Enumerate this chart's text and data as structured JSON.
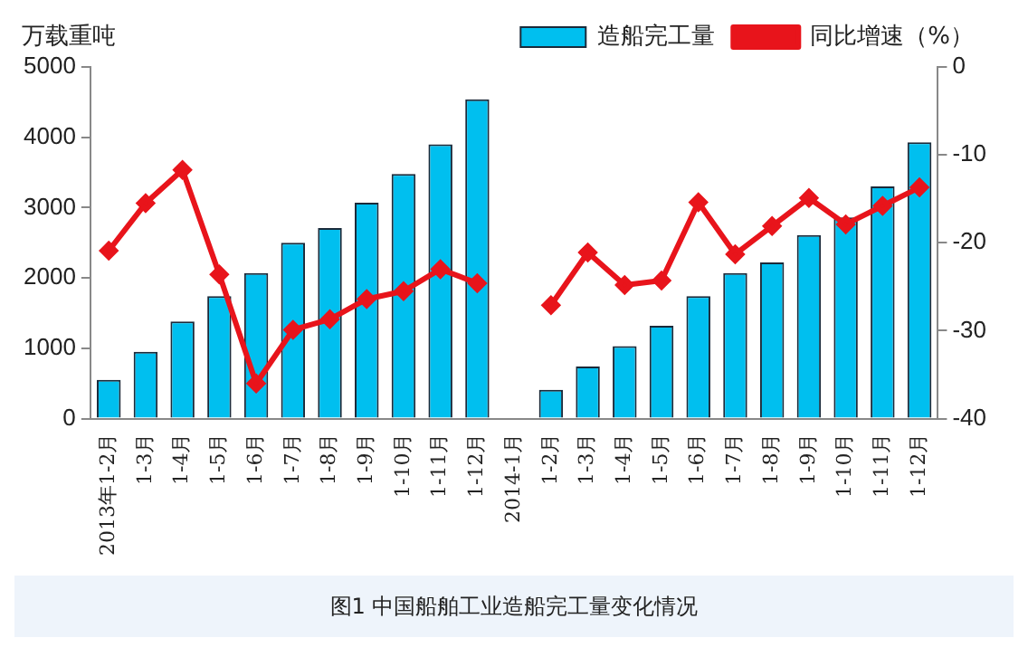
{
  "chart_data": {
    "type": "bar",
    "ylabel": "万载重吨",
    "categories": [
      "2013年1-2月",
      "1-3月",
      "1-4月",
      "1-5月",
      "1-6月",
      "1-7月",
      "1-8月",
      "1-9月",
      "1-10月",
      "1-11月",
      "1-12月",
      "2014-1月",
      "1-2月",
      "1-3月",
      "1-4月",
      "1-5月",
      "1-6月",
      "1-7月",
      "1-8月",
      "1-9月",
      "1-10月",
      "1-11月",
      "1-12月"
    ],
    "series": [
      {
        "name": "造船完工量",
        "color": "#00bfef",
        "values": [
          550,
          950,
          1380,
          1740,
          2070,
          2500,
          2710,
          3070,
          3480,
          3900,
          4540,
          null,
          410,
          740,
          1030,
          1320,
          1740,
          2070,
          2220,
          2610,
          2860,
          3300,
          3930
        ]
      },
      {
        "name": "同比增速（%）",
        "type": "line",
        "axis": "y2",
        "color": "#e8141b",
        "marker": "diamond",
        "values": [
          -20.9,
          -15.5,
          -11.7,
          -23.6,
          -36.0,
          -29.9,
          -28.7,
          -26.4,
          -25.5,
          -23.0,
          -24.6,
          null,
          -27.1,
          -21.1,
          -24.8,
          -24.3,
          -15.4,
          -21.3,
          -18.1,
          -14.9,
          -17.9,
          -15.8,
          -13.7
        ]
      }
    ],
    "ylim": [
      0,
      5000
    ],
    "yticks": [
      0,
      1000,
      2000,
      3000,
      4000,
      5000
    ],
    "y2lim": [
      -40,
      0
    ],
    "y2ticks": [
      -40,
      -30,
      -20,
      -10,
      0
    ],
    "grid": false,
    "legend": "top",
    "annotations": [
      "图1 中国船舶工业造船完工量变化情况"
    ]
  }
}
